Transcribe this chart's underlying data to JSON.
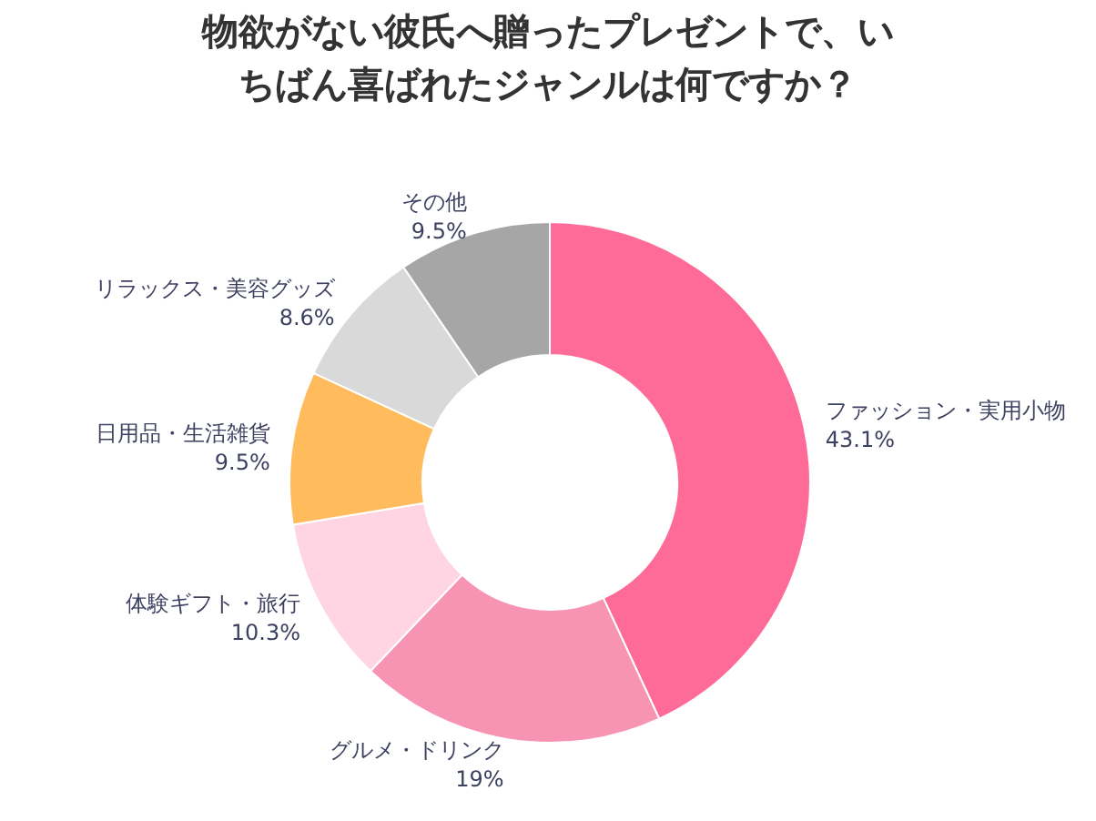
{
  "chart_data": {
    "type": "donut",
    "title": "物欲がない彼氏へ贈ったプレゼントで、いちばん喜ばれたジャンルは何ですか？",
    "categories": [
      "ファッション・実用小物",
      "グルメ・ドリンク",
      "体験ギフト・旅行",
      "日用品・生活雑貨",
      "リラックス・美容グッズ",
      "その他"
    ],
    "values": [
      43.1,
      19,
      10.3,
      9.5,
      8.6,
      9.5
    ],
    "value_labels": [
      "43.1%",
      "19%",
      "10.3%",
      "9.5%",
      "8.6%",
      "9.5%"
    ],
    "colors": [
      "#ff6b99",
      "#f793b3",
      "#ffd5e3",
      "#ffbb5c",
      "#d9d9d9",
      "#a6a6a6"
    ]
  }
}
